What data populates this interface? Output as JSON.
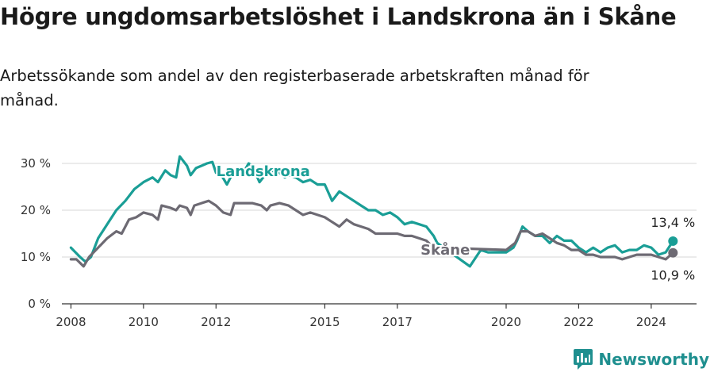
{
  "title": "Högre ungdomsarbetslöshet i Landskrona än i Skåne",
  "subtitle": "Arbetssökande som andel av den registerbaserade arbetskraften månad för månad.",
  "brand": {
    "name": "Newsworthy",
    "icon": "newsworthy-logo-icon",
    "color": "#1f8f8f"
  },
  "chart_data": {
    "type": "line",
    "title": "Högre ungdomsarbetslöshet i Landskrona än i Skåne",
    "xlabel": "",
    "ylabel": "",
    "xlim": [
      2007.75,
      2025.25
    ],
    "ylim": [
      0,
      30
    ],
    "yticks": [
      0,
      10,
      20,
      30
    ],
    "ytick_labels": [
      "0 %",
      "10 %",
      "20 %",
      "30 %"
    ],
    "xticks": [
      2008,
      2010,
      2012,
      2015,
      2017,
      2020,
      2022,
      2024
    ],
    "xtick_labels": [
      "2008",
      "2010",
      "2012",
      "2015",
      "2017",
      "2020",
      "2022",
      "2024"
    ],
    "grid": true,
    "series": [
      {
        "name": "Landskrona",
        "label": "Landskrona",
        "color": "#1a9e96",
        "end_label": "13,4 %",
        "x": [
          2008.0,
          2008.25,
          2008.4,
          2008.55,
          2008.75,
          2009.0,
          2009.25,
          2009.5,
          2009.75,
          2010.0,
          2010.25,
          2010.4,
          2010.6,
          2010.75,
          2010.9,
          2011.0,
          2011.2,
          2011.3,
          2011.45,
          2011.6,
          2011.75,
          2011.9,
          2012.0,
          2012.15,
          2012.3,
          2012.5,
          2012.75,
          2012.9,
          2013.0,
          2013.2,
          2013.4,
          2013.6,
          2013.75,
          2013.9,
          2014.0,
          2014.2,
          2014.4,
          2014.6,
          2014.8,
          2015.0,
          2015.2,
          2015.4,
          2015.6,
          2015.8,
          2016.0,
          2016.2,
          2016.4,
          2016.6,
          2016.8,
          2017.0,
          2017.2,
          2017.4,
          2017.6,
          2017.8,
          2018.0,
          2018.1,
          2019.0,
          2019.3,
          2019.5,
          2019.8,
          2020.0,
          2020.2,
          2020.3,
          2020.45,
          2020.6,
          2020.8,
          2021.0,
          2021.2,
          2021.4,
          2021.6,
          2021.8,
          2022.0,
          2022.2,
          2022.4,
          2022.6,
          2022.8,
          2023.0,
          2023.2,
          2023.4,
          2023.6,
          2023.8,
          2024.0,
          2024.2,
          2024.4,
          2024.6
        ],
        "values": [
          12.0,
          10.0,
          9.0,
          10.0,
          14.0,
          17.0,
          20.0,
          22.0,
          24.5,
          26.0,
          27.0,
          26.0,
          28.5,
          27.5,
          27.0,
          31.5,
          29.5,
          27.5,
          29.0,
          29.5,
          30.0,
          30.3,
          28.0,
          27.5,
          25.5,
          28.5,
          28.0,
          30.0,
          29.5,
          26.0,
          28.0,
          28.5,
          28.0,
          27.0,
          27.5,
          27.0,
          26.0,
          26.5,
          25.5,
          25.5,
          22.0,
          24.0,
          23.0,
          22.0,
          21.0,
          20.0,
          20.0,
          19.0,
          19.5,
          18.5,
          17.0,
          17.5,
          17.0,
          16.5,
          14.5,
          13.0,
          8.0,
          11.5,
          11.0,
          11.0,
          11.0,
          12.0,
          13.5,
          16.5,
          15.5,
          14.5,
          14.5,
          13.0,
          14.5,
          13.5,
          13.5,
          12.0,
          11.0,
          12.0,
          11.0,
          12.0,
          12.5,
          11.0,
          11.5,
          11.5,
          12.5,
          12.0,
          10.5,
          11.0,
          13.4
        ]
      },
      {
        "name": "Skåne",
        "label": "Skåne",
        "color": "#6d6a73",
        "end_label": "10,9 %",
        "x": [
          2008.0,
          2008.15,
          2008.35,
          2008.5,
          2008.75,
          2009.0,
          2009.25,
          2009.4,
          2009.6,
          2009.8,
          2010.0,
          2010.25,
          2010.4,
          2010.5,
          2010.75,
          2010.9,
          2011.0,
          2011.2,
          2011.3,
          2011.4,
          2011.6,
          2011.8,
          2012.0,
          2012.2,
          2012.4,
          2012.5,
          2012.75,
          2013.0,
          2013.25,
          2013.4,
          2013.5,
          2013.75,
          2014.0,
          2014.2,
          2014.4,
          2014.6,
          2014.8,
          2015.0,
          2015.2,
          2015.4,
          2015.6,
          2015.8,
          2016.0,
          2016.2,
          2016.4,
          2016.6,
          2016.8,
          2017.0,
          2017.2,
          2017.4,
          2017.6,
          2017.8,
          2018.0,
          2018.1,
          2020.0,
          2020.25,
          2020.4,
          2020.6,
          2020.8,
          2021.0,
          2021.2,
          2021.4,
          2021.6,
          2021.8,
          2022.0,
          2022.2,
          2022.4,
          2022.6,
          2022.8,
          2023.0,
          2023.2,
          2023.4,
          2023.6,
          2023.8,
          2024.0,
          2024.2,
          2024.4,
          2024.6
        ],
        "values": [
          9.5,
          9.5,
          8.0,
          10.0,
          12.0,
          14.0,
          15.5,
          15.0,
          18.0,
          18.5,
          19.5,
          19.0,
          18.0,
          21.0,
          20.5,
          20.0,
          21.0,
          20.5,
          19.0,
          21.0,
          21.5,
          22.0,
          21.0,
          19.5,
          19.0,
          21.5,
          21.5,
          21.5,
          21.0,
          20.0,
          21.0,
          21.5,
          21.0,
          20.0,
          19.0,
          19.5,
          19.0,
          18.5,
          17.5,
          16.5,
          18.0,
          17.0,
          16.5,
          16.0,
          15.0,
          15.0,
          15.0,
          15.0,
          14.5,
          14.5,
          14.0,
          13.5,
          12.0,
          12.0,
          11.5,
          13.0,
          15.5,
          15.5,
          14.5,
          15.0,
          14.0,
          13.0,
          12.5,
          11.5,
          11.5,
          10.5,
          10.5,
          10.0,
          10.0,
          10.0,
          9.5,
          10.0,
          10.5,
          10.5,
          10.5,
          10.0,
          9.5,
          10.9
        ]
      }
    ]
  }
}
